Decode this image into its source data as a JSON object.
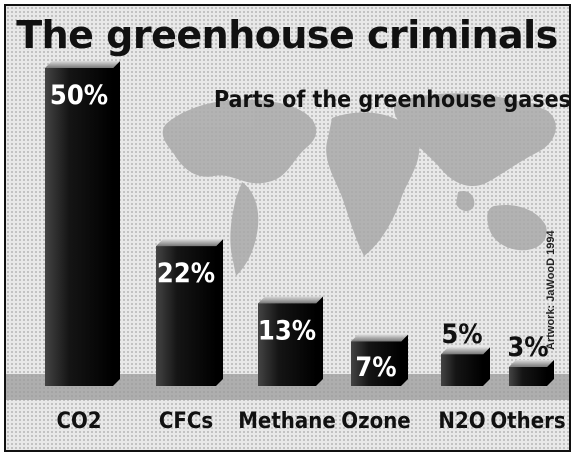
{
  "chart_data": {
    "type": "bar",
    "title": "The greenhouse criminals",
    "subtitle": "Parts of the greenhouse gases",
    "categories": [
      "CO2",
      "CFCs",
      "Methane",
      "Ozone",
      "N2O",
      "Others"
    ],
    "values": [
      50,
      22,
      13,
      7,
      5,
      3
    ],
    "value_labels": [
      "50%",
      "22%",
      "13%",
      "7%",
      "5%",
      "3%"
    ],
    "ylim": [
      0,
      50
    ],
    "grid": false,
    "legend": "none",
    "bar_color": "#1a1a1a",
    "credit": "Artwork: JaWooD 1994"
  },
  "colors": {
    "background": "#e8e8e8",
    "bar": "#1a1a1a",
    "map": "#a9a9a9",
    "floor": "#9b9b9b"
  }
}
